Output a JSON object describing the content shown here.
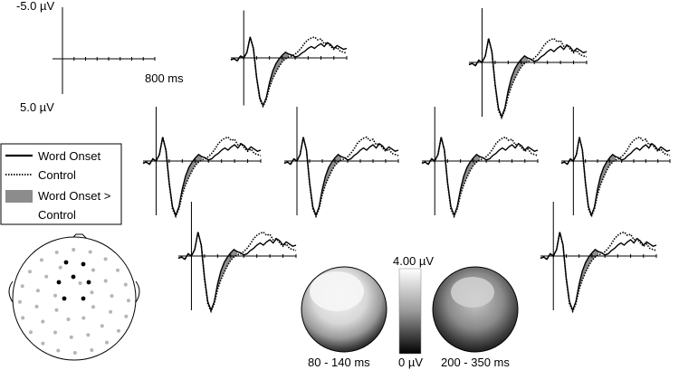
{
  "scale": {
    "y_top_label": "-5.0 µV",
    "y_bottom_label": "5.0 µV",
    "x_label": "800 ms"
  },
  "legend": {
    "word_onset": "Word Onset",
    "control": "Control",
    "difference": "Word Onset >",
    "difference_line2": "Control"
  },
  "colorbar": {
    "top_label": "4.00 µV",
    "bottom_label": "0 µV"
  },
  "maps": [
    {
      "window": "80 - 140 ms"
    },
    {
      "window": "200 - 350 ms"
    }
  ],
  "colors": {
    "waveform": "#000000",
    "shaded_difference": "#8c8c8c",
    "electrode_highlight": "#000000",
    "electrode_other": "#b5b5b5"
  },
  "chart_data": {
    "type": "line",
    "x_unit": "ms",
    "y_unit": "µV",
    "x_range": [
      -100,
      800
    ],
    "ylim": [
      5.0,
      -5.0
    ],
    "y_axis_negative_up": true,
    "x": [
      -100,
      -75,
      -50,
      -25,
      0,
      25,
      50,
      75,
      100,
      125,
      150,
      175,
      200,
      225,
      250,
      275,
      300,
      325,
      350,
      375,
      400,
      425,
      450,
      475,
      500,
      525,
      550,
      575,
      600,
      625,
      650,
      675,
      700,
      725,
      750,
      775,
      800
    ],
    "series": [
      {
        "name": "Word Onset",
        "values": [
          0.2,
          0.1,
          0.3,
          -0.2,
          0.0,
          -0.6,
          -2.2,
          -1.0,
          2.0,
          4.2,
          5.0,
          4.2,
          2.6,
          1.4,
          0.6,
          0.1,
          -0.3,
          -0.6,
          -0.4,
          -0.3,
          -0.1,
          -0.2,
          -0.5,
          -0.7,
          -1.0,
          -1.2,
          -1.0,
          -1.3,
          -1.5,
          -1.2,
          -1.6,
          -1.4,
          -1.0,
          -1.3,
          -1.1,
          -0.9,
          -1.0
        ]
      },
      {
        "name": "Control",
        "values": [
          0.2,
          0.1,
          0.3,
          -0.2,
          0.0,
          -0.6,
          -2.2,
          -1.0,
          2.1,
          4.4,
          5.1,
          4.4,
          3.1,
          2.2,
          1.5,
          0.9,
          0.4,
          0.1,
          -0.1,
          -0.2,
          -0.4,
          -0.7,
          -1.1,
          -1.6,
          -1.9,
          -2.1,
          -2.2,
          -1.9,
          -2.0,
          -1.5,
          -1.6,
          -1.2,
          -0.9,
          -1.1,
          -0.7,
          -0.6,
          -0.5
        ]
      }
    ],
    "shaded_difference_window_ms": [
      200,
      350
    ],
    "panels": [
      "eeg-panel-1",
      "eeg-panel-2",
      "eeg-panel-3",
      "eeg-panel-4",
      "eeg-panel-5",
      "eeg-panel-6",
      "eeg-panel-7",
      "eeg-panel-8"
    ]
  }
}
